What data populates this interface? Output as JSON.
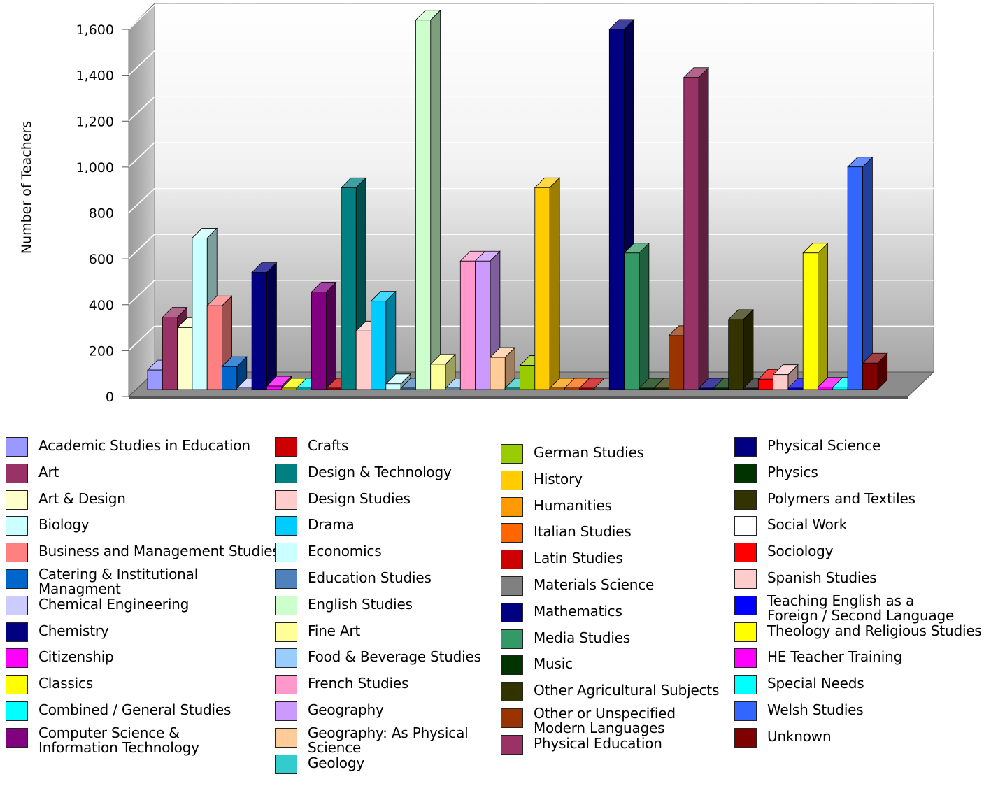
{
  "chart_data": {
    "type": "bar",
    "title": "",
    "xlabel": "",
    "ylabel": "Number of Teachers",
    "ylim": [
      0,
      1600
    ],
    "yticks": [
      "0",
      "200",
      "400",
      "600",
      "800",
      "1,000",
      "1,200",
      "1,400",
      "1,600"
    ],
    "grid": true,
    "legend_position": "bottom",
    "three_d": true,
    "categories": [
      "Academic Studies in Education",
      "Art",
      "Art & Design",
      "Biology",
      "Business and Management Studies",
      "Catering & Institutional Managment",
      "Chemical Engineering",
      "Chemistry",
      "Citizenship",
      "Classics",
      "Combined / General Studies",
      "Computer Science & Information Technology",
      "Crafts",
      "Design & Technology",
      "Design Studies",
      "Drama",
      "Economics",
      "Education Studies",
      "English Studies",
      "Fine Art",
      "Food & Beverage Studies",
      "French Studies",
      "Geography",
      "Geography: As Physical Science",
      "Geology",
      "German Studies",
      "History",
      "Humanities",
      "Italian Studies",
      "Latin Studies",
      "Materials Science",
      "Mathematics",
      "Media Studies",
      "Music",
      "Other Agricultural Subjects",
      "Other or Unspecified Modern Languages",
      "Physical Education",
      "Physical Science",
      "Physics",
      "Polymers and Textiles",
      "Social Work",
      "Sociology",
      "Spanish Studies",
      "Teaching English as a Foreign / Second Language",
      "Theology and Religious Studies",
      "HE Teacher Training",
      "Special Needs",
      "Welsh Studies",
      "Unknown"
    ],
    "values": [
      85,
      315,
      270,
      660,
      365,
      100,
      5,
      510,
      15,
      5,
      5,
      425,
      5,
      880,
      255,
      385,
      25,
      5,
      1610,
      110,
      5,
      560,
      560,
      140,
      5,
      105,
      880,
      5,
      5,
      5,
      5,
      1570,
      595,
      5,
      5,
      235,
      1360,
      5,
      5,
      305,
      5,
      45,
      65,
      5,
      595,
      10,
      10,
      970,
      115
    ]
  },
  "legend": {
    "items": [
      {
        "label": "Academic Studies in Education",
        "color": "#9999ff"
      },
      {
        "label": "Art",
        "color": "#993366"
      },
      {
        "label": "Art & Design",
        "color": "#ffffcc"
      },
      {
        "label": "Biology",
        "color": "#ccffff"
      },
      {
        "label": "Business and Management Studies",
        "color": "#ff8080"
      },
      {
        "label": "Catering & Institutional\nManagment",
        "color": "#0066cc"
      },
      {
        "label": "Chemical Engineering",
        "color": "#ccccff"
      },
      {
        "label": "Chemistry",
        "color": "#000080"
      },
      {
        "label": "Citizenship",
        "color": "#ff00ff"
      },
      {
        "label": "Classics",
        "color": "#ffff00"
      },
      {
        "label": "Combined / General Studies",
        "color": "#00ffff"
      },
      {
        "label": "Computer Science &\nInformation Technology",
        "color": "#800080"
      },
      {
        "label": "Crafts",
        "color": "#cc0000"
      },
      {
        "label": "Design & Technology",
        "color": "#008080"
      },
      {
        "label": "Design Studies",
        "color": "#ffcccc"
      },
      {
        "label": "Drama",
        "color": "#00ccff"
      },
      {
        "label": "Economics",
        "color": "#ccffff"
      },
      {
        "label": "Education Studies",
        "color": "#4f81bd"
      },
      {
        "label": "English Studies",
        "color": "#ccffcc"
      },
      {
        "label": "Fine Art",
        "color": "#ffff99"
      },
      {
        "label": "Food & Beverage Studies",
        "color": "#99ccff"
      },
      {
        "label": "French Studies",
        "color": "#ff99cc"
      },
      {
        "label": "Geography",
        "color": "#cc99ff"
      },
      {
        "label": "Geography: As Physical\nScience",
        "color": "#ffcc99"
      },
      {
        "label": "Geology",
        "color": "#33cccc"
      },
      {
        "label": "German Studies",
        "color": "#99cc00"
      },
      {
        "label": "History",
        "color": "#ffcc00"
      },
      {
        "label": "Humanities",
        "color": "#ff9900"
      },
      {
        "label": "Italian Studies",
        "color": "#ff6600"
      },
      {
        "label": "Latin Studies",
        "color": "#cc0000"
      },
      {
        "label": "Materials Science",
        "color": "#808080"
      },
      {
        "label": "Mathematics",
        "color": "#000080"
      },
      {
        "label": "Media Studies",
        "color": "#339966"
      },
      {
        "label": "Music",
        "color": "#003300"
      },
      {
        "label": "Other Agricultural Subjects",
        "color": "#333300"
      },
      {
        "label": "Other or Unspecified\nModern Languages",
        "color": "#993300"
      },
      {
        "label": "Physical Education",
        "color": "#993366"
      },
      {
        "label": "Physical Science",
        "color": "#000080"
      },
      {
        "label": "Physics",
        "color": "#003300"
      },
      {
        "label": "Polymers and Textiles",
        "color": "#333300"
      },
      {
        "label": "Social Work",
        "color": "#ffffff"
      },
      {
        "label": "Sociology",
        "color": "#ff0000"
      },
      {
        "label": "Spanish Studies",
        "color": "#ffcccc"
      },
      {
        "label": "Teaching English as a\nForeign / Second Language",
        "color": "#0000ff"
      },
      {
        "label": "Theology and Religious Studies",
        "color": "#ffff00"
      },
      {
        "label": "HE Teacher Training",
        "color": "#ff00ff"
      },
      {
        "label": "Special Needs",
        "color": "#00ffff"
      },
      {
        "label": "Welsh Studies",
        "color": "#3366ff"
      },
      {
        "label": "Unknown",
        "color": "#800000"
      }
    ]
  },
  "bar_colors": [
    "#9999ff",
    "#993366",
    "#ffffcc",
    "#ccffff",
    "#ff8080",
    "#0066cc",
    "#ccccff",
    "#000080",
    "#ff00ff",
    "#ffff00",
    "#00ffff",
    "#800080",
    "#cc0000",
    "#008080",
    "#ffcccc",
    "#00ccff",
    "#ccffff",
    "#4f81bd",
    "#ccffcc",
    "#ffff99",
    "#99ccff",
    "#ff99cc",
    "#cc99ff",
    "#ffcc99",
    "#33cccc",
    "#99cc00",
    "#ffcc00",
    "#ff9900",
    "#ff6600",
    "#cc0000",
    "#808080",
    "#000080",
    "#339966",
    "#003300",
    "#333300",
    "#993300",
    "#993366",
    "#000080",
    "#003300",
    "#333300",
    "#222222",
    "#ff0000",
    "#ffcccc",
    "#0000ff",
    "#ffff00",
    "#ff00ff",
    "#00ffff",
    "#3366ff",
    "#800000"
  ]
}
